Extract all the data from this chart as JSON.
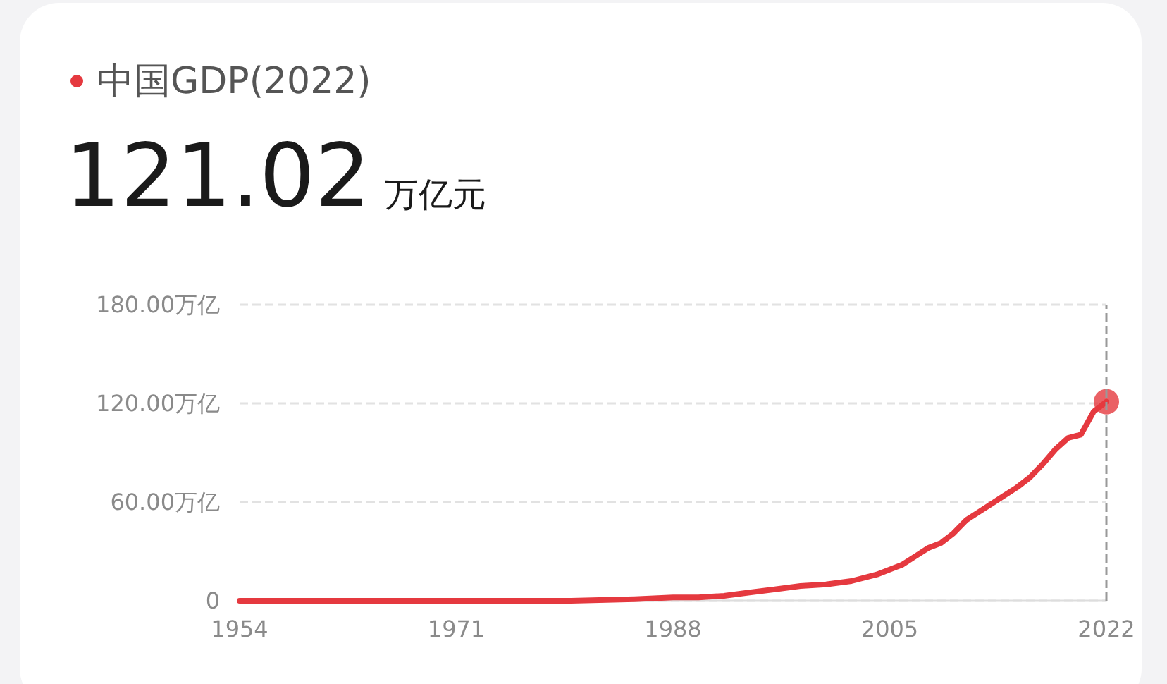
{
  "chart_data": {
    "type": "line",
    "title": "中国GDP(2022)",
    "subtitle": "121.02 万亿元",
    "xlim": [
      1954,
      2022
    ],
    "xticks": [
      1954,
      1971,
      1988,
      2005,
      2022
    ],
    "ylim": [
      0,
      180
    ],
    "yticks": [
      {
        "value": 0,
        "label": "0"
      },
      {
        "value": 60,
        "label": "60.00万亿"
      },
      {
        "value": 120,
        "label": "120.00万亿"
      },
      {
        "value": 180,
        "label": "180.00万亿"
      }
    ],
    "grid": "y",
    "marker": "none",
    "line_style": "solid",
    "series": [
      {
        "color": "#e5393f",
        "x": [
          1954,
          1960,
          1965,
          1970,
          1975,
          1978,
          1980,
          1985,
          1988,
          1990,
          1992,
          1994,
          1996,
          1998,
          2000,
          2002,
          2004,
          2006,
          2007,
          2008,
          2009,
          2010,
          2011,
          2012,
          2013,
          2014,
          2015,
          2016,
          2017,
          2018,
          2019,
          2020,
          2021,
          2022
        ],
        "values": [
          0,
          0,
          0,
          0,
          0,
          0,
          0,
          1,
          2,
          2,
          3,
          5,
          7,
          9,
          10,
          12,
          16,
          22,
          27,
          32,
          35,
          41,
          49,
          54,
          59,
          64,
          69,
          75,
          83,
          92,
          99,
          101,
          115,
          121
        ]
      },
      {
        "type": "scatter",
        "color": "#e5393f",
        "marker": "circle",
        "x": [
          2022
        ],
        "values": [
          121
        ]
      }
    ],
    "ref_lines": [
      {
        "axis": "x",
        "value": 2022,
        "color": "#999999",
        "line_style": "dashed"
      }
    ]
  }
}
